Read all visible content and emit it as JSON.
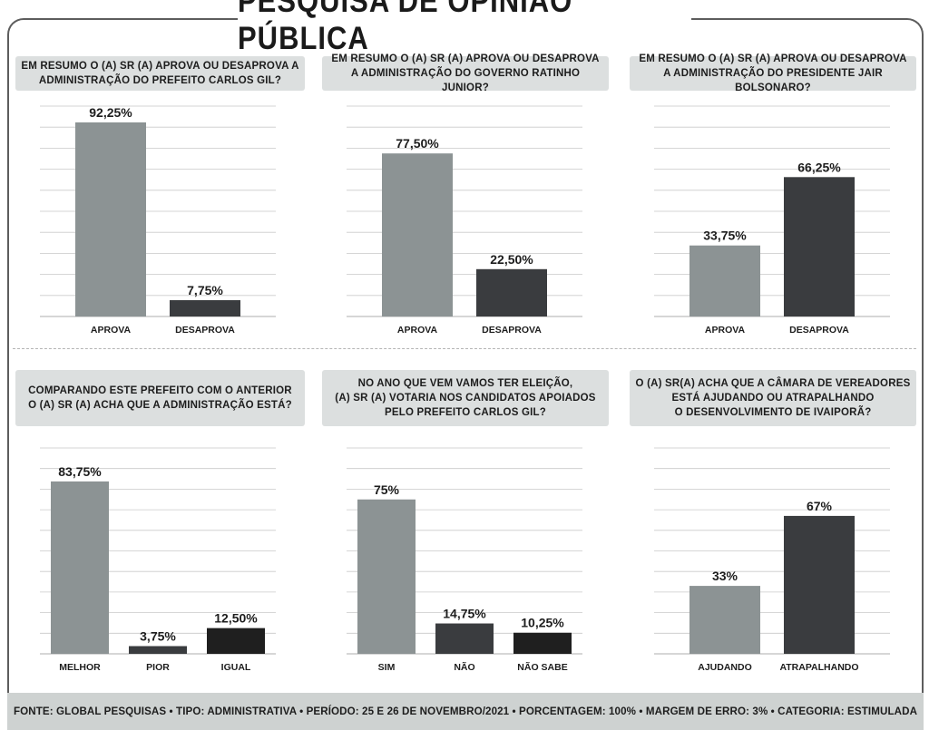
{
  "title": "PESQUISA DE OPINIÃO PÚBLICA",
  "footer": "FONTE: GLOBAL PESQUISAS • TIPO: ADMINISTRATIVA • PERÍODO: 25 E 26 DE NOVEMBRO/2021 • PORCENTAGEM: 100% • MARGEM DE ERRO: 3% • CATEGORIA: ESTIMULADA",
  "colors": {
    "light": "#8c9394",
    "dark": "#3a3c3f",
    "black": "#1f1f1f",
    "grid": "#c9c9c9",
    "question_bg": "#dcdfdf"
  },
  "chart_data": [
    {
      "type": "bar",
      "title": "EM RESUMO O (A) SR (A) APROVA OU DESAPROVA A\nADMINISTRAÇÃO DO PREFEITO CARLOS GIL?",
      "categories": [
        "APROVA",
        "DESAPROVA"
      ],
      "values": [
        92.25,
        7.75
      ],
      "labels": [
        "92,25%",
        "7,75%"
      ],
      "bar_colors": [
        "light",
        "dark"
      ],
      "ylim": [
        0,
        100
      ],
      "grid": true
    },
    {
      "type": "bar",
      "title": "EM RESUMO O (A) SR (A) APROVA OU DESAPROVA\nA ADMINISTRAÇÃO DO GOVERNO RATINHO JUNIOR?",
      "categories": [
        "APROVA",
        "DESAPROVA"
      ],
      "values": [
        77.5,
        22.5
      ],
      "labels": [
        "77,50%",
        "22,50%"
      ],
      "bar_colors": [
        "light",
        "dark"
      ],
      "ylim": [
        0,
        100
      ],
      "grid": true
    },
    {
      "type": "bar",
      "title": "EM RESUMO O (A) SR (A) APROVA OU DESAPROVA\nA ADMINISTRAÇÃO DO PRESIDENTE JAIR BOLSONARO?",
      "categories": [
        "APROVA",
        "DESAPROVA"
      ],
      "values": [
        33.75,
        66.25
      ],
      "labels": [
        "33,75%",
        "66,25%"
      ],
      "bar_colors": [
        "light",
        "dark"
      ],
      "ylim": [
        0,
        100
      ],
      "grid": true
    },
    {
      "type": "bar",
      "title": "COMPARANDO ESTE PREFEITO COM O ANTERIOR\nO (A) SR (A) ACHA QUE A ADMINISTRAÇÃO ESTÁ?",
      "categories": [
        "MELHOR",
        "PIOR",
        "IGUAL"
      ],
      "values": [
        83.75,
        3.75,
        12.5
      ],
      "labels": [
        "83,75%",
        "3,75%",
        "12,50%"
      ],
      "bar_colors": [
        "light",
        "dark",
        "black"
      ],
      "ylim": [
        0,
        100
      ],
      "grid": true
    },
    {
      "type": "bar",
      "title": "NO ANO QUE VEM VAMOS TER ELEIÇÃO,\n(A) SR (A) VOTARIA NOS CANDIDATOS APOIADOS\nPELO PREFEITO CARLOS GIL?",
      "categories": [
        "SIM",
        "NÃO",
        "NÃO SABE"
      ],
      "values": [
        75,
        14.75,
        10.25
      ],
      "labels": [
        "75%",
        "14,75%",
        "10,25%"
      ],
      "bar_colors": [
        "light",
        "dark",
        "black"
      ],
      "ylim": [
        0,
        100
      ],
      "grid": true
    },
    {
      "type": "bar",
      "title": "O (A) SR(A) ACHA QUE A CÂMARA DE VEREADORES\nESTÁ AJUDANDO OU ATRAPALHANDO\nO DESENVOLVIMENTO DE IVAIPORÃ?",
      "categories": [
        "AJUDANDO",
        "ATRAPALHANDO"
      ],
      "values": [
        33,
        67
      ],
      "labels": [
        "33%",
        "67%"
      ],
      "bar_colors": [
        "light",
        "dark"
      ],
      "ylim": [
        0,
        100
      ],
      "grid": true
    }
  ]
}
